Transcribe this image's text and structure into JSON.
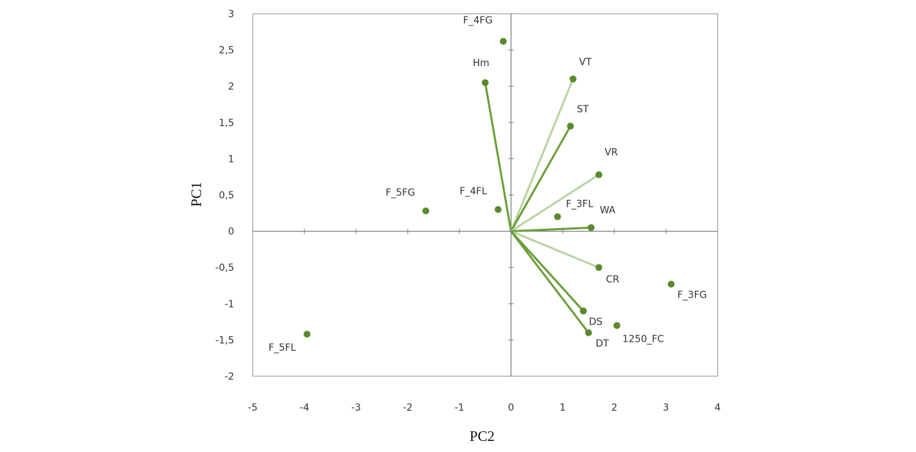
{
  "chart_data": {
    "type": "scatter",
    "xlabel": "PC2",
    "ylabel": "PC1",
    "xlim": [
      -5,
      4
    ],
    "ylim": [
      -2,
      3
    ],
    "x_ticks": [
      "-5",
      "-4",
      "-3",
      "-2",
      "-1",
      "0",
      "1",
      "2",
      "3",
      "4"
    ],
    "y_ticks": [
      "3",
      "2,5",
      "2",
      "1,5",
      "1",
      "0,5",
      "0",
      "-0,5",
      "-1",
      "-1,5",
      "-2"
    ],
    "grid": false,
    "legend": "none",
    "colors": {
      "point": "#5a8a2e",
      "vector_dark": "#6a9e38",
      "vector_light": "#b8d4a0",
      "axis": "#7f7f7f"
    },
    "vectors": [
      {
        "name": "Hm",
        "x": -0.5,
        "y": 2.05
      },
      {
        "name": "VT",
        "x": 1.2,
        "y": 2.1
      },
      {
        "name": "ST",
        "x": 1.15,
        "y": 1.45
      },
      {
        "name": "VR",
        "x": 1.7,
        "y": 0.78
      },
      {
        "name": "WA",
        "x": 1.55,
        "y": 0.05
      },
      {
        "name": "CR",
        "x": 1.7,
        "y": -0.5
      },
      {
        "name": "DS",
        "x": 1.4,
        "y": -1.1
      },
      {
        "name": "DT",
        "x": 1.5,
        "y": -1.4
      }
    ],
    "points": [
      {
        "name": "F_4FG",
        "x": -0.15,
        "y": 2.62
      },
      {
        "name": "F_5FG",
        "x": -1.65,
        "y": 0.28
      },
      {
        "name": "F_4FL",
        "x": -0.25,
        "y": 0.3
      },
      {
        "name": "F_3FL",
        "x": 0.9,
        "y": 0.2
      },
      {
        "name": "F_3FG",
        "x": 3.1,
        "y": -0.73
      },
      {
        "name": "1250_FC",
        "x": 2.05,
        "y": -1.3
      },
      {
        "name": "F_5FL",
        "x": -3.95,
        "y": -1.42
      }
    ]
  }
}
